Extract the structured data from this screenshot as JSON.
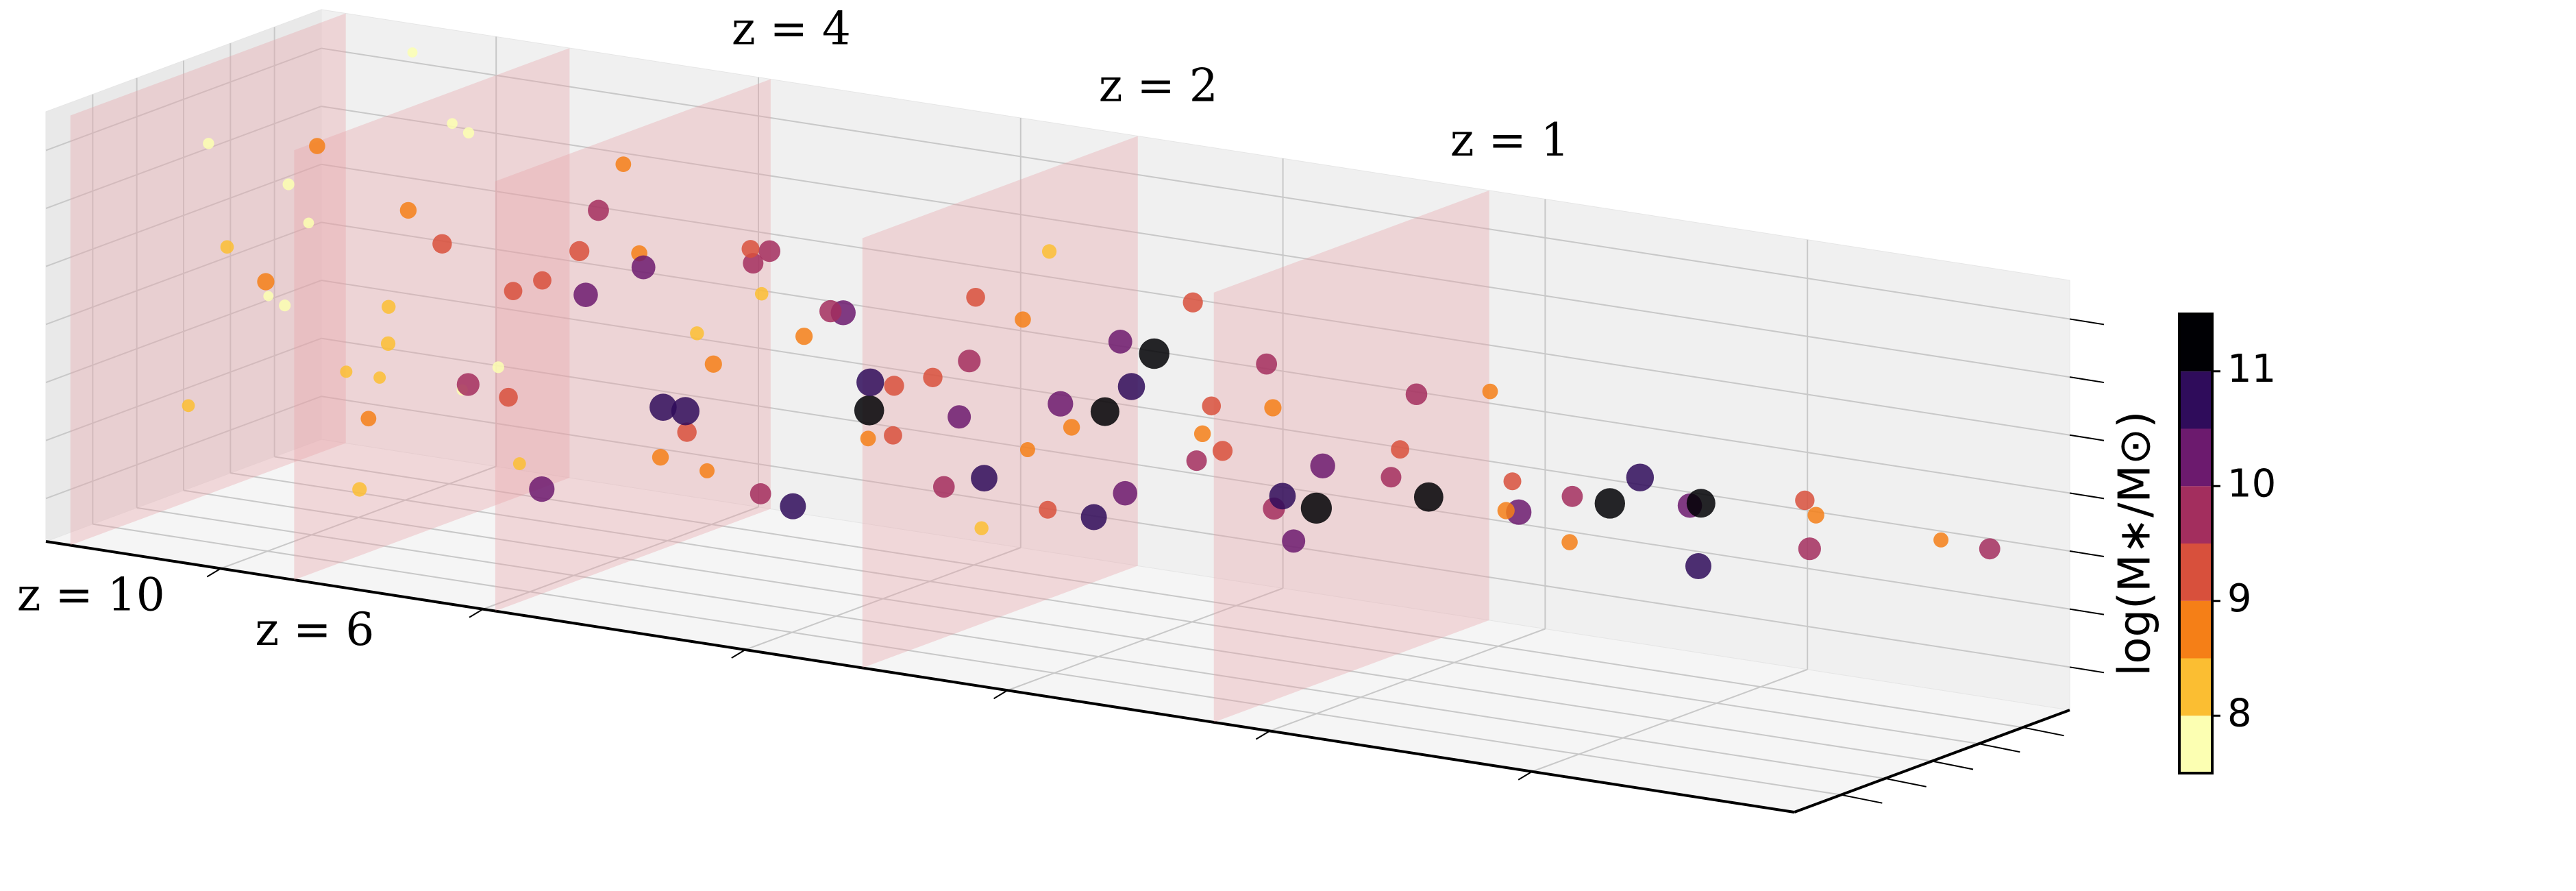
{
  "chart_data": {
    "type": "scatter3d",
    "xlim": [
      0,
      1
    ],
    "ylim": [
      0,
      1
    ],
    "zlim": [
      0,
      1
    ],
    "xticks": [
      0.1,
      0.25,
      0.4,
      0.55,
      0.7,
      0.85
    ],
    "yticks": [
      0.17,
      0.33,
      0.5,
      0.67,
      0.83
    ],
    "zticks": [
      0.1,
      0.235,
      0.37,
      0.505,
      0.64,
      0.775,
      0.91
    ],
    "grid": true,
    "planes": [
      {
        "label": "z = 10",
        "x": 0.014
      },
      {
        "label": "z = 6",
        "x": 0.142
      },
      {
        "label": "z = 4",
        "x": 0.257
      },
      {
        "label": "z = 2",
        "x": 0.467
      },
      {
        "label": "z = 1",
        "x": 0.668
      }
    ],
    "plane_color": "#e8a0a6",
    "x": [
      0.03,
      0.04,
      0.05,
      0.06,
      0.07,
      0.08,
      0.09,
      0.1,
      0.11,
      0.12,
      0.13,
      0.14,
      0.15,
      0.05,
      0.08,
      0.12,
      0.03,
      0.1,
      0.14,
      0.06,
      0.16,
      0.17,
      0.18,
      0.19,
      0.2,
      0.21,
      0.22,
      0.23,
      0.24,
      0.25,
      0.26,
      0.27,
      0.28,
      0.29,
      0.3,
      0.18,
      0.22,
      0.26,
      0.2,
      0.28,
      0.31,
      0.32,
      0.33,
      0.34,
      0.35,
      0.36,
      0.37,
      0.38,
      0.39,
      0.4,
      0.41,
      0.42,
      0.43,
      0.44,
      0.45,
      0.33,
      0.37,
      0.41,
      0.44,
      0.39,
      0.46,
      0.47,
      0.48,
      0.49,
      0.5,
      0.51,
      0.52,
      0.53,
      0.54,
      0.55,
      0.56,
      0.57,
      0.58,
      0.59,
      0.6,
      0.48,
      0.53,
      0.56,
      0.5,
      0.58,
      0.61,
      0.62,
      0.63,
      0.64,
      0.65,
      0.66,
      0.68,
      0.69,
      0.7,
      0.72,
      0.73,
      0.74,
      0.76,
      0.77,
      0.78,
      0.8,
      0.81,
      0.83,
      0.84,
      0.86,
      0.88,
      0.89,
      0.91,
      0.93,
      0.95,
      0.97
    ],
    "y": [
      0.4,
      0.7,
      0.2,
      0.5,
      0.8,
      0.3,
      0.6,
      0.9,
      0.1,
      0.45,
      0.65,
      0.25,
      0.85,
      0.55,
      0.15,
      0.75,
      0.9,
      0.35,
      0.55,
      0.95,
      0.3,
      0.6,
      0.1,
      0.8,
      0.45,
      0.2,
      0.7,
      0.5,
      0.9,
      0.35,
      0.15,
      0.65,
      0.85,
      0.4,
      0.25,
      0.5,
      0.3,
      0.75,
      0.9,
      0.55,
      0.6,
      0.2,
      0.8,
      0.4,
      0.1,
      0.7,
      0.5,
      0.3,
      0.9,
      0.45,
      0.15,
      0.65,
      0.35,
      0.85,
      0.55,
      0.5,
      0.25,
      0.75,
      0.2,
      0.6,
      0.3,
      0.7,
      0.5,
      0.15,
      0.85,
      0.4,
      0.6,
      0.2,
      0.75,
      0.45,
      0.9,
      0.3,
      0.55,
      0.1,
      0.65,
      0.35,
      0.8,
      0.25,
      0.55,
      0.75,
      0.4,
      0.7,
      0.2,
      0.55,
      0.85,
      0.3,
      0.6,
      0.15,
      0.8,
      0.45,
      0.25,
      0.65,
      0.5,
      0.9,
      0.35,
      0.6,
      0.4,
      0.7,
      0.2,
      0.55,
      0.8,
      0.35,
      0.65,
      0.5,
      0.85,
      0.9
    ],
    "z": [
      0.85,
      0.6,
      0.3,
      0.75,
      0.4,
      0.55,
      0.2,
      0.8,
      0.65,
      0.35,
      0.9,
      0.15,
      0.5,
      0.45,
      0.7,
      0.25,
      0.2,
      0.9,
      0.65,
      0.95,
      0.8,
      0.3,
      0.55,
      0.7,
      0.2,
      0.45,
      0.85,
      0.6,
      0.35,
      0.75,
      0.25,
      0.5,
      0.65,
      0.4,
      0.8,
      0.4,
      0.65,
      0.15,
      0.55,
      0.3,
      0.7,
      0.35,
      0.55,
      0.8,
      0.5,
      0.3,
      0.65,
      0.25,
      0.6,
      0.45,
      0.7,
      0.4,
      0.55,
      0.75,
      0.3,
      0.2,
      0.75,
      0.5,
      0.6,
      0.35,
      0.6,
      0.45,
      0.7,
      0.4,
      0.55,
      0.3,
      0.65,
      0.5,
      0.35,
      0.6,
      0.45,
      0.4,
      0.55,
      0.65,
      0.3,
      0.25,
      0.7,
      0.35,
      0.45,
      0.6,
      0.5,
      0.4,
      0.6,
      0.35,
      0.55,
      0.45,
      0.5,
      0.4,
      0.6,
      0.45,
      0.55,
      0.38,
      0.5,
      0.42,
      0.48,
      0.45,
      0.52,
      0.44,
      0.48,
      0.5,
      0.46,
      0.42,
      0.48,
      0.45,
      0.4,
      0.38
    ],
    "values": [
      7.8,
      7.7,
      8.1,
      7.9,
      8.3,
      7.6,
      8.6,
      7.8,
      8.9,
      8.0,
      7.7,
      8.4,
      9.1,
      7.9,
      8.2,
      7.8,
      8.0,
      8.7,
      9.3,
      7.6,
      8.8,
      9.2,
      8.4,
      9.6,
      8.1,
      9.9,
      8.6,
      10.2,
      8.9,
      9.4,
      10.4,
      8.3,
      9.7,
      10.7,
      8.7,
      7.9,
      9.1,
      8.5,
      10.1,
      9.3,
      9.5,
      8.8,
      10.3,
      9.0,
      10.9,
      8.6,
      9.8,
      10.5,
      9.2,
      11.2,
      8.9,
      10.0,
      9.4,
      8.4,
      10.6,
      9.6,
      8.2,
      9.9,
      10.8,
      9.1,
      9.3,
      10.4,
      8.7,
      9.7,
      11.3,
      9.0,
      10.1,
      8.5,
      9.5,
      10.7,
      8.9,
      10.2,
      9.2,
      11.0,
      9.8,
      8.3,
      9.4,
      10.5,
      8.8,
      9.6,
      9.4,
      10.3,
      8.8,
      11.4,
      9.7,
      10.6,
      9.1,
      10.0,
      8.6,
      11.1,
      9.5,
      10.4,
      9.0,
      10.8,
      8.9,
      11.3,
      9.6,
      10.2,
      8.7,
      11.0,
      9.3,
      10.5,
      8.8,
      9.9,
      8.5,
      9.6
    ],
    "colorbar": {
      "label": "log(M∗/M⊙)",
      "lim": [
        7.5,
        11.5
      ],
      "bounds": [
        7.5,
        8,
        8.5,
        9,
        9.5,
        10,
        10.5,
        11,
        11.5
      ],
      "colors": [
        "#fcffb2",
        "#fbbe32",
        "#f57f17",
        "#d8503c",
        "#a32e5e",
        "#6c1a6e",
        "#2f0c5b",
        "#000004"
      ],
      "ticks": [
        8,
        9,
        10,
        11
      ]
    }
  }
}
